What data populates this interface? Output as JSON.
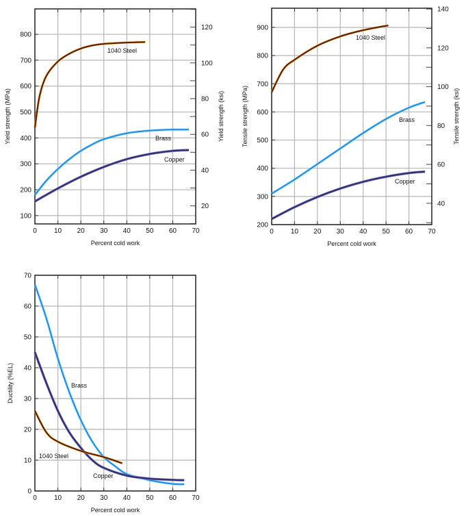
{
  "chart_data": [
    {
      "type": "line",
      "title": "",
      "xlabel": "Percent cold work",
      "ylabel": "Yield strength (MPa)",
      "y2label": "Yield strength (ksi)",
      "xlim": [
        0,
        70
      ],
      "ylim": [
        68,
        898
      ],
      "y2lim": [
        9.9,
        130.2
      ],
      "xticks": [
        0,
        10,
        20,
        30,
        40,
        50,
        60,
        70
      ],
      "yticks": [
        100,
        200,
        300,
        400,
        500,
        600,
        700,
        800
      ],
      "y2ticks": [
        20,
        40,
        60,
        80,
        100,
        120
      ],
      "y2minor": [
        10,
        30,
        50,
        70,
        90,
        110,
        130
      ],
      "grid": true,
      "series": [
        {
          "name": "1040 Steel",
          "color": "#5a1a05",
          "x": [
            0,
            2,
            5,
            10,
            15,
            20,
            25,
            30,
            40,
            48
          ],
          "y": [
            440,
            560,
            640,
            695,
            725,
            745,
            757,
            763,
            768,
            770
          ]
        },
        {
          "name": "Brass",
          "color": "#1a8ce0",
          "x": [
            0,
            5,
            10,
            15,
            20,
            25,
            30,
            40,
            50,
            60,
            67
          ],
          "y": [
            180,
            235,
            280,
            318,
            350,
            375,
            395,
            418,
            428,
            432,
            432
          ]
        },
        {
          "name": "Copper",
          "color": "#2b2b6e",
          "x": [
            0,
            10,
            20,
            30,
            40,
            50,
            60,
            67
          ],
          "y": [
            155,
            205,
            250,
            288,
            318,
            338,
            350,
            353
          ]
        }
      ]
    },
    {
      "type": "line",
      "title": "",
      "xlabel": "Percent cold work",
      "ylabel": "Tensile strength (MPa)",
      "y2label": "Tensile strength (ksi)",
      "xlim": [
        0,
        70
      ],
      "ylim": [
        200,
        968
      ],
      "y2lim": [
        29,
        140.4
      ],
      "xticks": [
        0,
        10,
        20,
        30,
        40,
        50,
        60,
        70
      ],
      "yticks": [
        200,
        300,
        400,
        500,
        600,
        700,
        800,
        900
      ],
      "y2ticks": [
        40,
        60,
        80,
        100,
        120,
        140
      ],
      "y2minor": [
        30,
        50,
        70,
        90,
        110,
        130
      ],
      "grid": true,
      "series": [
        {
          "name": "1040 Steel",
          "color": "#5a1a05",
          "x": [
            0,
            5,
            10,
            20,
            30,
            40,
            51
          ],
          "y": [
            670,
            750,
            785,
            835,
            868,
            890,
            907
          ]
        },
        {
          "name": "Brass",
          "color": "#1a8ce0",
          "x": [
            0,
            10,
            20,
            30,
            40,
            50,
            60,
            67
          ],
          "y": [
            310,
            360,
            415,
            470,
            525,
            575,
            615,
            635
          ]
        },
        {
          "name": "Copper",
          "color": "#2b2b6e",
          "x": [
            0,
            10,
            20,
            30,
            40,
            50,
            60,
            67
          ],
          "y": [
            220,
            262,
            298,
            328,
            352,
            370,
            383,
            388
          ]
        }
      ]
    },
    {
      "type": "line",
      "title": "",
      "xlabel": "Percent cold work",
      "ylabel": "Ductility (%EL)",
      "xlim": [
        0,
        70
      ],
      "ylim": [
        0,
        70
      ],
      "xticks": [
        0,
        10,
        20,
        30,
        40,
        50,
        60,
        70
      ],
      "yticks": [
        0,
        10,
        20,
        30,
        40,
        50,
        60,
        70
      ],
      "grid": true,
      "series": [
        {
          "name": "Brass",
          "color": "#1a8ce0",
          "x": [
            0,
            5,
            10,
            15,
            20,
            25,
            30,
            35,
            40,
            50,
            60,
            65
          ],
          "y": [
            67,
            56,
            43,
            32,
            23,
            16,
            11,
            8,
            5.5,
            3.5,
            2.3,
            2.2
          ]
        },
        {
          "name": "Copper",
          "color": "#2b2b6e",
          "x": [
            0,
            5,
            10,
            15,
            20,
            25,
            30,
            40,
            50,
            60,
            65
          ],
          "y": [
            45,
            35,
            26,
            19,
            14,
            10,
            7.5,
            5,
            4,
            3.6,
            3.5
          ]
        },
        {
          "name": "1040 Steel",
          "color": "#5a1a05",
          "x": [
            0,
            5,
            10,
            20,
            30,
            38
          ],
          "y": [
            26,
            19,
            16,
            13,
            11,
            9
          ]
        }
      ]
    }
  ]
}
